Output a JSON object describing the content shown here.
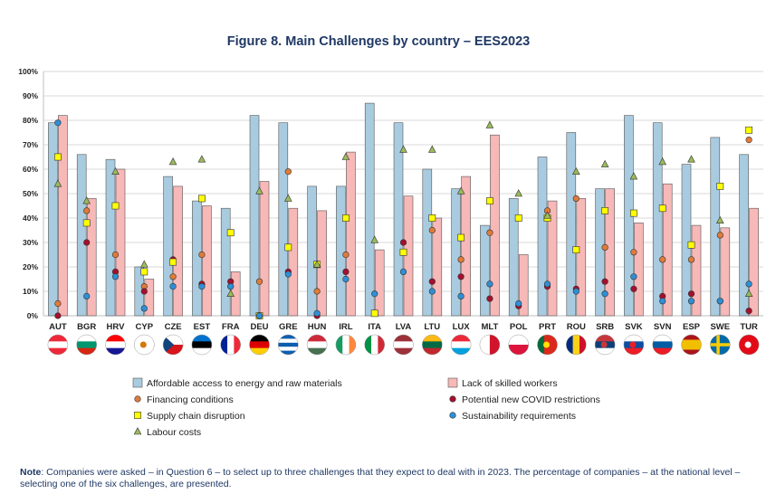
{
  "chart_data": {
    "type": "bar",
    "title": "Figure 8. Main Challenges by country – EES2023",
    "categories": [
      "AUT",
      "BGR",
      "HRV",
      "CYP",
      "CZE",
      "EST",
      "FRA",
      "DEU",
      "GRE",
      "HUN",
      "IRL",
      "ITA",
      "LVA",
      "LTU",
      "LUX",
      "MLT",
      "POL",
      "PRT",
      "ROU",
      "SRB",
      "SVK",
      "SVN",
      "ESP",
      "SWE",
      "TUR"
    ],
    "yticks": [
      "0%",
      "10%",
      "20%",
      "30%",
      "40%",
      "50%",
      "60%",
      "70%",
      "80%",
      "90%",
      "100%"
    ],
    "ylim": [
      0,
      100
    ],
    "grid": true,
    "legend_position": "bottom",
    "bar_series": [
      {
        "name": "Affordable access to energy and raw materials",
        "color": "#a9cbe0",
        "values": [
          79,
          66,
          64,
          20,
          57,
          47,
          44,
          82,
          79,
          53,
          53,
          87,
          79,
          60,
          52,
          37,
          48,
          65,
          75,
          52,
          82,
          79,
          62,
          73,
          66
        ]
      },
      {
        "name": "Lack of skilled workers",
        "color": "#f7b8b8",
        "values": [
          82,
          48,
          60,
          15,
          53,
          45,
          18,
          55,
          44,
          43,
          67,
          27,
          49,
          40,
          57,
          74,
          25,
          47,
          48,
          52,
          38,
          54,
          37,
          36,
          44
        ]
      }
    ],
    "marker_series": [
      {
        "name": "Financing conditions",
        "marker": "circle",
        "color": "#e07b39",
        "values": [
          5,
          43,
          25,
          12,
          16,
          25,
          12,
          14,
          59,
          10,
          25,
          1,
          26,
          35,
          23,
          34,
          40,
          43,
          48,
          28,
          26,
          23,
          23,
          33,
          72
        ]
      },
      {
        "name": "Potential new COVID restrictions",
        "marker": "circle",
        "color": "#a50f2d",
        "values": [
          0,
          30,
          18,
          10,
          23,
          13,
          14,
          0,
          18,
          0,
          18,
          1,
          30,
          14,
          16,
          7,
          4,
          12,
          11,
          14,
          11,
          8,
          9,
          6,
          2
        ]
      },
      {
        "name": "Supply chain disruption",
        "marker": "square",
        "color": "#ffff00",
        "values": [
          65,
          38,
          45,
          18,
          22,
          48,
          34,
          0,
          28,
          21,
          40,
          1,
          26,
          40,
          32,
          47,
          40,
          40,
          27,
          43,
          42,
          44,
          29,
          53,
          76
        ]
      },
      {
        "name": "Sustainability requirements",
        "marker": "circle",
        "color": "#2e8fd6",
        "values": [
          79,
          8,
          16,
          3,
          12,
          12,
          12,
          0,
          17,
          1,
          15,
          9,
          18,
          10,
          8,
          13,
          5,
          13,
          10,
          9,
          16,
          6,
          6,
          6,
          13
        ]
      },
      {
        "name": "Labour costs",
        "marker": "triangle",
        "color": "#9bbb59",
        "values": [
          54,
          47,
          59,
          21,
          63,
          64,
          9,
          51,
          48,
          21,
          65,
          31,
          68,
          68,
          51,
          78,
          50,
          41,
          59,
          62,
          57,
          63,
          64,
          39,
          9
        ]
      }
    ],
    "flags": [
      {
        "country": "AUT",
        "colors": [
          "#ed2939",
          "#ffffff",
          "#ed2939"
        ],
        "dir": "h"
      },
      {
        "country": "BGR",
        "colors": [
          "#ffffff",
          "#00966e",
          "#d62612"
        ],
        "dir": "h"
      },
      {
        "country": "HRV",
        "colors": [
          "#ff0000",
          "#ffffff",
          "#171796"
        ],
        "dir": "h"
      },
      {
        "country": "CYP",
        "colors": [
          "#ffffff"
        ],
        "dir": "h",
        "emblem": "#d57800"
      },
      {
        "country": "CZE",
        "colors": [
          "#ffffff",
          "#d7141a"
        ],
        "dir": "h",
        "triangle": "#11457e"
      },
      {
        "country": "EST",
        "colors": [
          "#0072ce",
          "#000000",
          "#ffffff"
        ],
        "dir": "h"
      },
      {
        "country": "FRA",
        "colors": [
          "#002395",
          "#ffffff",
          "#ed2939"
        ],
        "dir": "v"
      },
      {
        "country": "DEU",
        "colors": [
          "#000000",
          "#dd0000",
          "#ffce00"
        ],
        "dir": "h"
      },
      {
        "country": "GRE",
        "colors": [
          "#0d5eaf",
          "#ffffff",
          "#0d5eaf",
          "#ffffff",
          "#0d5eaf"
        ],
        "dir": "h"
      },
      {
        "country": "HUN",
        "colors": [
          "#ce2939",
          "#ffffff",
          "#477050"
        ],
        "dir": "h"
      },
      {
        "country": "IRL",
        "colors": [
          "#169b62",
          "#ffffff",
          "#ff883e"
        ],
        "dir": "v"
      },
      {
        "country": "ITA",
        "colors": [
          "#009246",
          "#ffffff",
          "#ce2b37"
        ],
        "dir": "v"
      },
      {
        "country": "LVA",
        "colors": [
          "#9e3039",
          "#ffffff",
          "#9e3039"
        ],
        "dir": "h"
      },
      {
        "country": "LTU",
        "colors": [
          "#fdb913",
          "#006a44",
          "#c1272d"
        ],
        "dir": "h"
      },
      {
        "country": "LUX",
        "colors": [
          "#ed2939",
          "#ffffff",
          "#00a1de"
        ],
        "dir": "h"
      },
      {
        "country": "MLT",
        "colors": [
          "#ffffff",
          "#cf142b"
        ],
        "dir": "v"
      },
      {
        "country": "POL",
        "colors": [
          "#ffffff",
          "#dc143c"
        ],
        "dir": "h"
      },
      {
        "country": "PRT",
        "colors": [
          "#046a38",
          "#da291c",
          "#da291c"
        ],
        "dir": "v",
        "emblem": "#ffe000"
      },
      {
        "country": "ROU",
        "colors": [
          "#002b7f",
          "#fcd116",
          "#ce1126"
        ],
        "dir": "v"
      },
      {
        "country": "SRB",
        "colors": [
          "#c6363c",
          "#0c4076",
          "#ffffff"
        ],
        "dir": "h",
        "emblem": "#c6363c"
      },
      {
        "country": "SVK",
        "colors": [
          "#ffffff",
          "#0b4ea2",
          "#ee1c25"
        ],
        "dir": "h",
        "emblem": "#ee1c25"
      },
      {
        "country": "SVN",
        "colors": [
          "#ffffff",
          "#005da4",
          "#ed1c24"
        ],
        "dir": "h",
        "emblem": "#005da4"
      },
      {
        "country": "ESP",
        "colors": [
          "#aa151b",
          "#f1bf00",
          "#f1bf00",
          "#aa151b"
        ],
        "dir": "h"
      },
      {
        "country": "SWE",
        "colors": [
          "#006aa7"
        ],
        "dir": "h",
        "cross": "#fecc00"
      },
      {
        "country": "TUR",
        "colors": [
          "#e30a17"
        ],
        "dir": "h",
        "emblem": "#ffffff"
      }
    ]
  },
  "note": {
    "label": "Note",
    "text": ": Companies were asked – in Question 6 – to select up to three challenges that they expect to deal with in 2023. The percentage of companies – at the national level – selecting one of the six challenges, are presented."
  }
}
